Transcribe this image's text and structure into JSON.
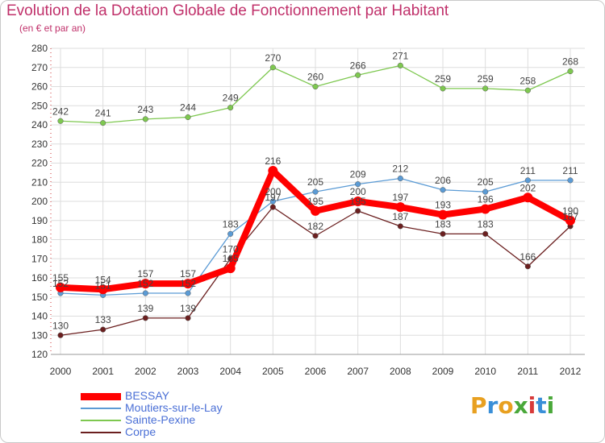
{
  "title": "Evolution de la Dotation Globale de Fonctionnement par Habitant",
  "subtitle": "(en € et par an)",
  "chart_data": {
    "type": "line",
    "x": [
      "2000",
      "2001",
      "2002",
      "2003",
      "2004",
      "2005",
      "2006",
      "2007",
      "2008",
      "2009",
      "2010",
      "2011",
      "2012"
    ],
    "ylim": [
      120,
      280
    ],
    "yticks": [
      120,
      130,
      140,
      150,
      160,
      170,
      180,
      190,
      200,
      210,
      220,
      230,
      240,
      250,
      260,
      270,
      280
    ],
    "grid": true,
    "legend_position": "bottom-left",
    "series": [
      {
        "name": "BESSAY",
        "color": "#ff0000",
        "values": [
          155,
          154,
          157,
          157,
          165,
          216,
          195,
          200,
          197,
          193,
          196,
          202,
          190
        ]
      },
      {
        "name": "Moutiers-sur-le-Lay",
        "color": "#5b9bd5",
        "values": [
          152,
          151,
          152,
          152,
          183,
          200,
          205,
          209,
          212,
          206,
          205,
          211,
          211
        ]
      },
      {
        "name": "Sainte-Pexine",
        "color": "#7ec850",
        "values": [
          242,
          241,
          243,
          244,
          249,
          270,
          260,
          266,
          271,
          259,
          259,
          258,
          268
        ]
      },
      {
        "name": "Corpe",
        "color": "#6b1f1f",
        "values": [
          130,
          133,
          139,
          139,
          170,
          197,
          182,
          195,
          187,
          183,
          183,
          166,
          187
        ]
      }
    ]
  },
  "logo": {
    "letters": [
      "P",
      "r",
      "o",
      "x",
      "i",
      "t",
      "i"
    ],
    "colors": [
      "#e8a020",
      "#3a8fd8",
      "#e8a020",
      "#4aa83a",
      "#d83a3a",
      "#3a8fd8",
      "#4aa83a"
    ]
  }
}
